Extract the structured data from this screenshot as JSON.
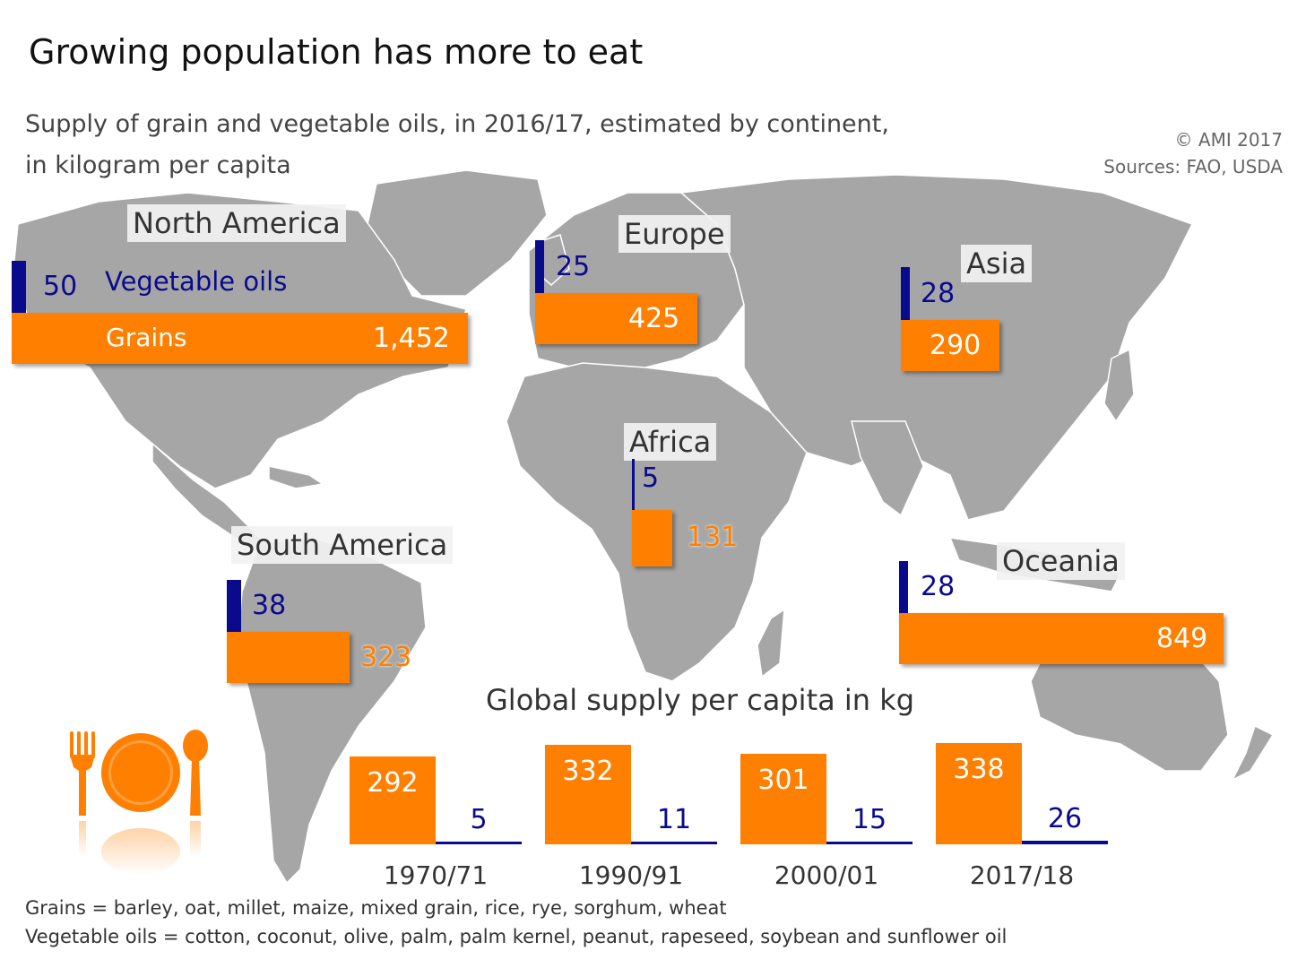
{
  "title": "Growing population has more to eat",
  "subtitle_line1": "Supply of grain and vegetable oils, in 2016/17, estimated by continent,",
  "subtitle_line2": "in kilogram per capita",
  "copyright": "© AMI 2017",
  "sources": "Sources: FAO, USDA",
  "legend": {
    "oils": "Vegetable oils",
    "grains": "Grains"
  },
  "global_title": "Global supply per capita in kg",
  "footnote_grains": "Grains = barley, oat, millet, maize, mixed grain, rice, rye, sorghum, wheat",
  "footnote_oils": "Vegetable oils = cotton, coconut, olive, palm, palm kernel, peanut, rapeseed, soybean and sunflower oil",
  "colors": {
    "grains": "#ff7f00",
    "oils": "#0a0a8c",
    "map": "#a6a6a6"
  },
  "icon": "plate-cutlery-icon",
  "chart_data": [
    {
      "type": "bar",
      "title": "Supply of grain and vegetable oils, in 2016/17, estimated by continent, in kilogram per capita",
      "categories": [
        "North America",
        "Europe",
        "Asia",
        "Africa",
        "South America",
        "Oceania"
      ],
      "series": [
        {
          "name": "Grains",
          "values": [
            1452,
            425,
            290,
            131,
            323,
            849
          ]
        },
        {
          "name": "Vegetable oils",
          "values": [
            50,
            25,
            28,
            5,
            38,
            28
          ]
        }
      ],
      "value_labels": {
        "grains": [
          "1,452",
          "425",
          "290",
          "131",
          "323",
          "849"
        ],
        "oils": [
          "50",
          "25",
          "28",
          "5",
          "38",
          "28"
        ]
      }
    },
    {
      "type": "bar",
      "title": "Global supply per capita in kg",
      "categories": [
        "1970/71",
        "1990/91",
        "2000/01",
        "2017/18"
      ],
      "series": [
        {
          "name": "Grains",
          "values": [
            292,
            332,
            301,
            338
          ]
        },
        {
          "name": "Vegetable oils",
          "values": [
            5,
            11,
            15,
            26
          ]
        }
      ]
    }
  ]
}
